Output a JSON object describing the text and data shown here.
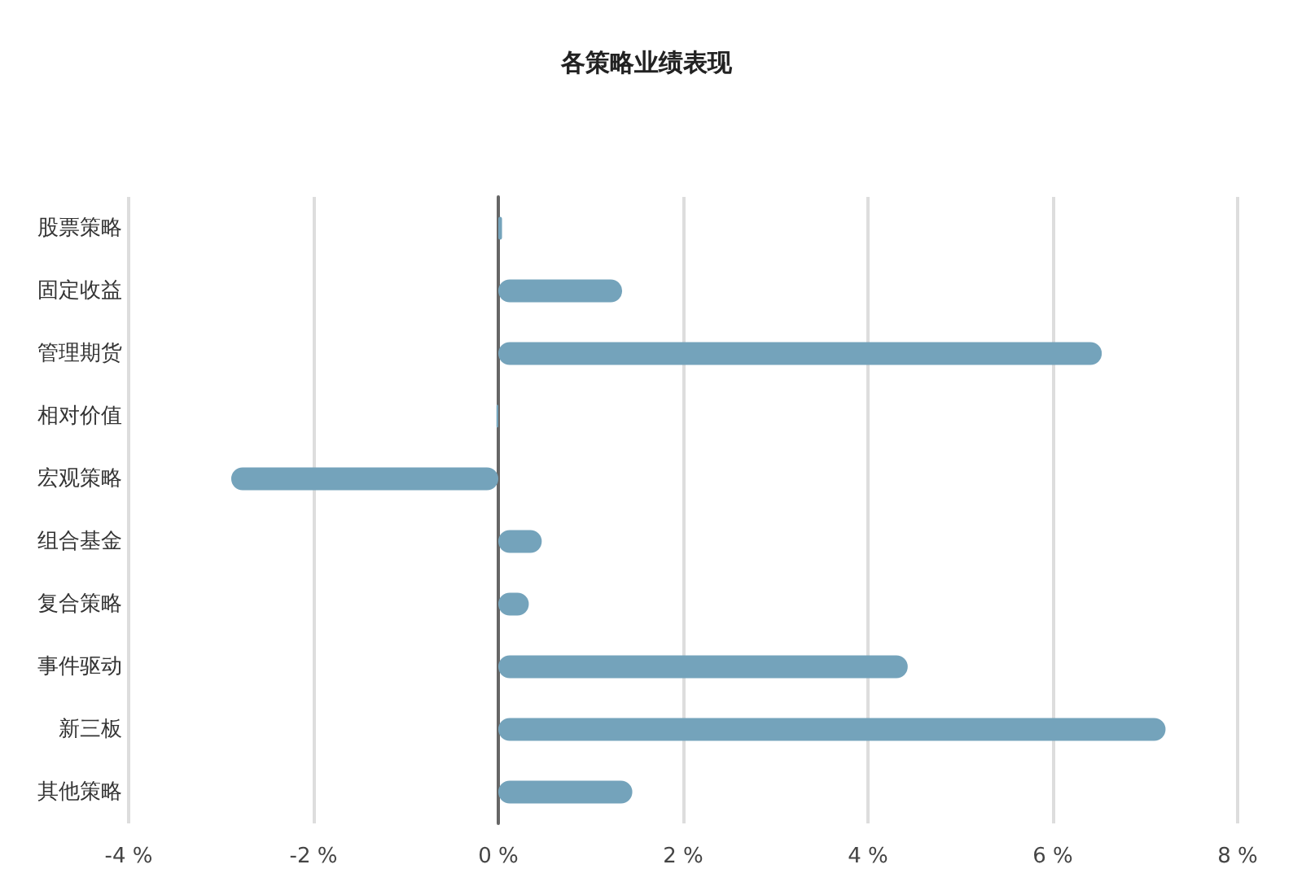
{
  "chart_data": {
    "type": "bar",
    "orientation": "horizontal",
    "title": "各策略业绩表现",
    "categories": [
      "股票策略",
      "固定收益",
      "管理期货",
      "相对价值",
      "宏观策略",
      "组合基金",
      "复合策略",
      "事件驱动",
      "新三板",
      "其他策略"
    ],
    "values": [
      0.04,
      1.34,
      6.53,
      -0.02,
      -2.89,
      0.47,
      0.33,
      4.43,
      7.22,
      1.45
    ],
    "color": "#74a3bb",
    "xlim": [
      -4,
      8
    ],
    "xticks": [
      {
        "value": -4,
        "label": "-4 %"
      },
      {
        "value": -2,
        "label": "-2 %"
      },
      {
        "value": 0,
        "label": "0 %"
      },
      {
        "value": 2,
        "label": "2 %"
      },
      {
        "value": 4,
        "label": "4 %"
      },
      {
        "value": 6,
        "label": "6 %"
      },
      {
        "value": 8,
        "label": "8 %"
      }
    ],
    "grid": "x"
  }
}
